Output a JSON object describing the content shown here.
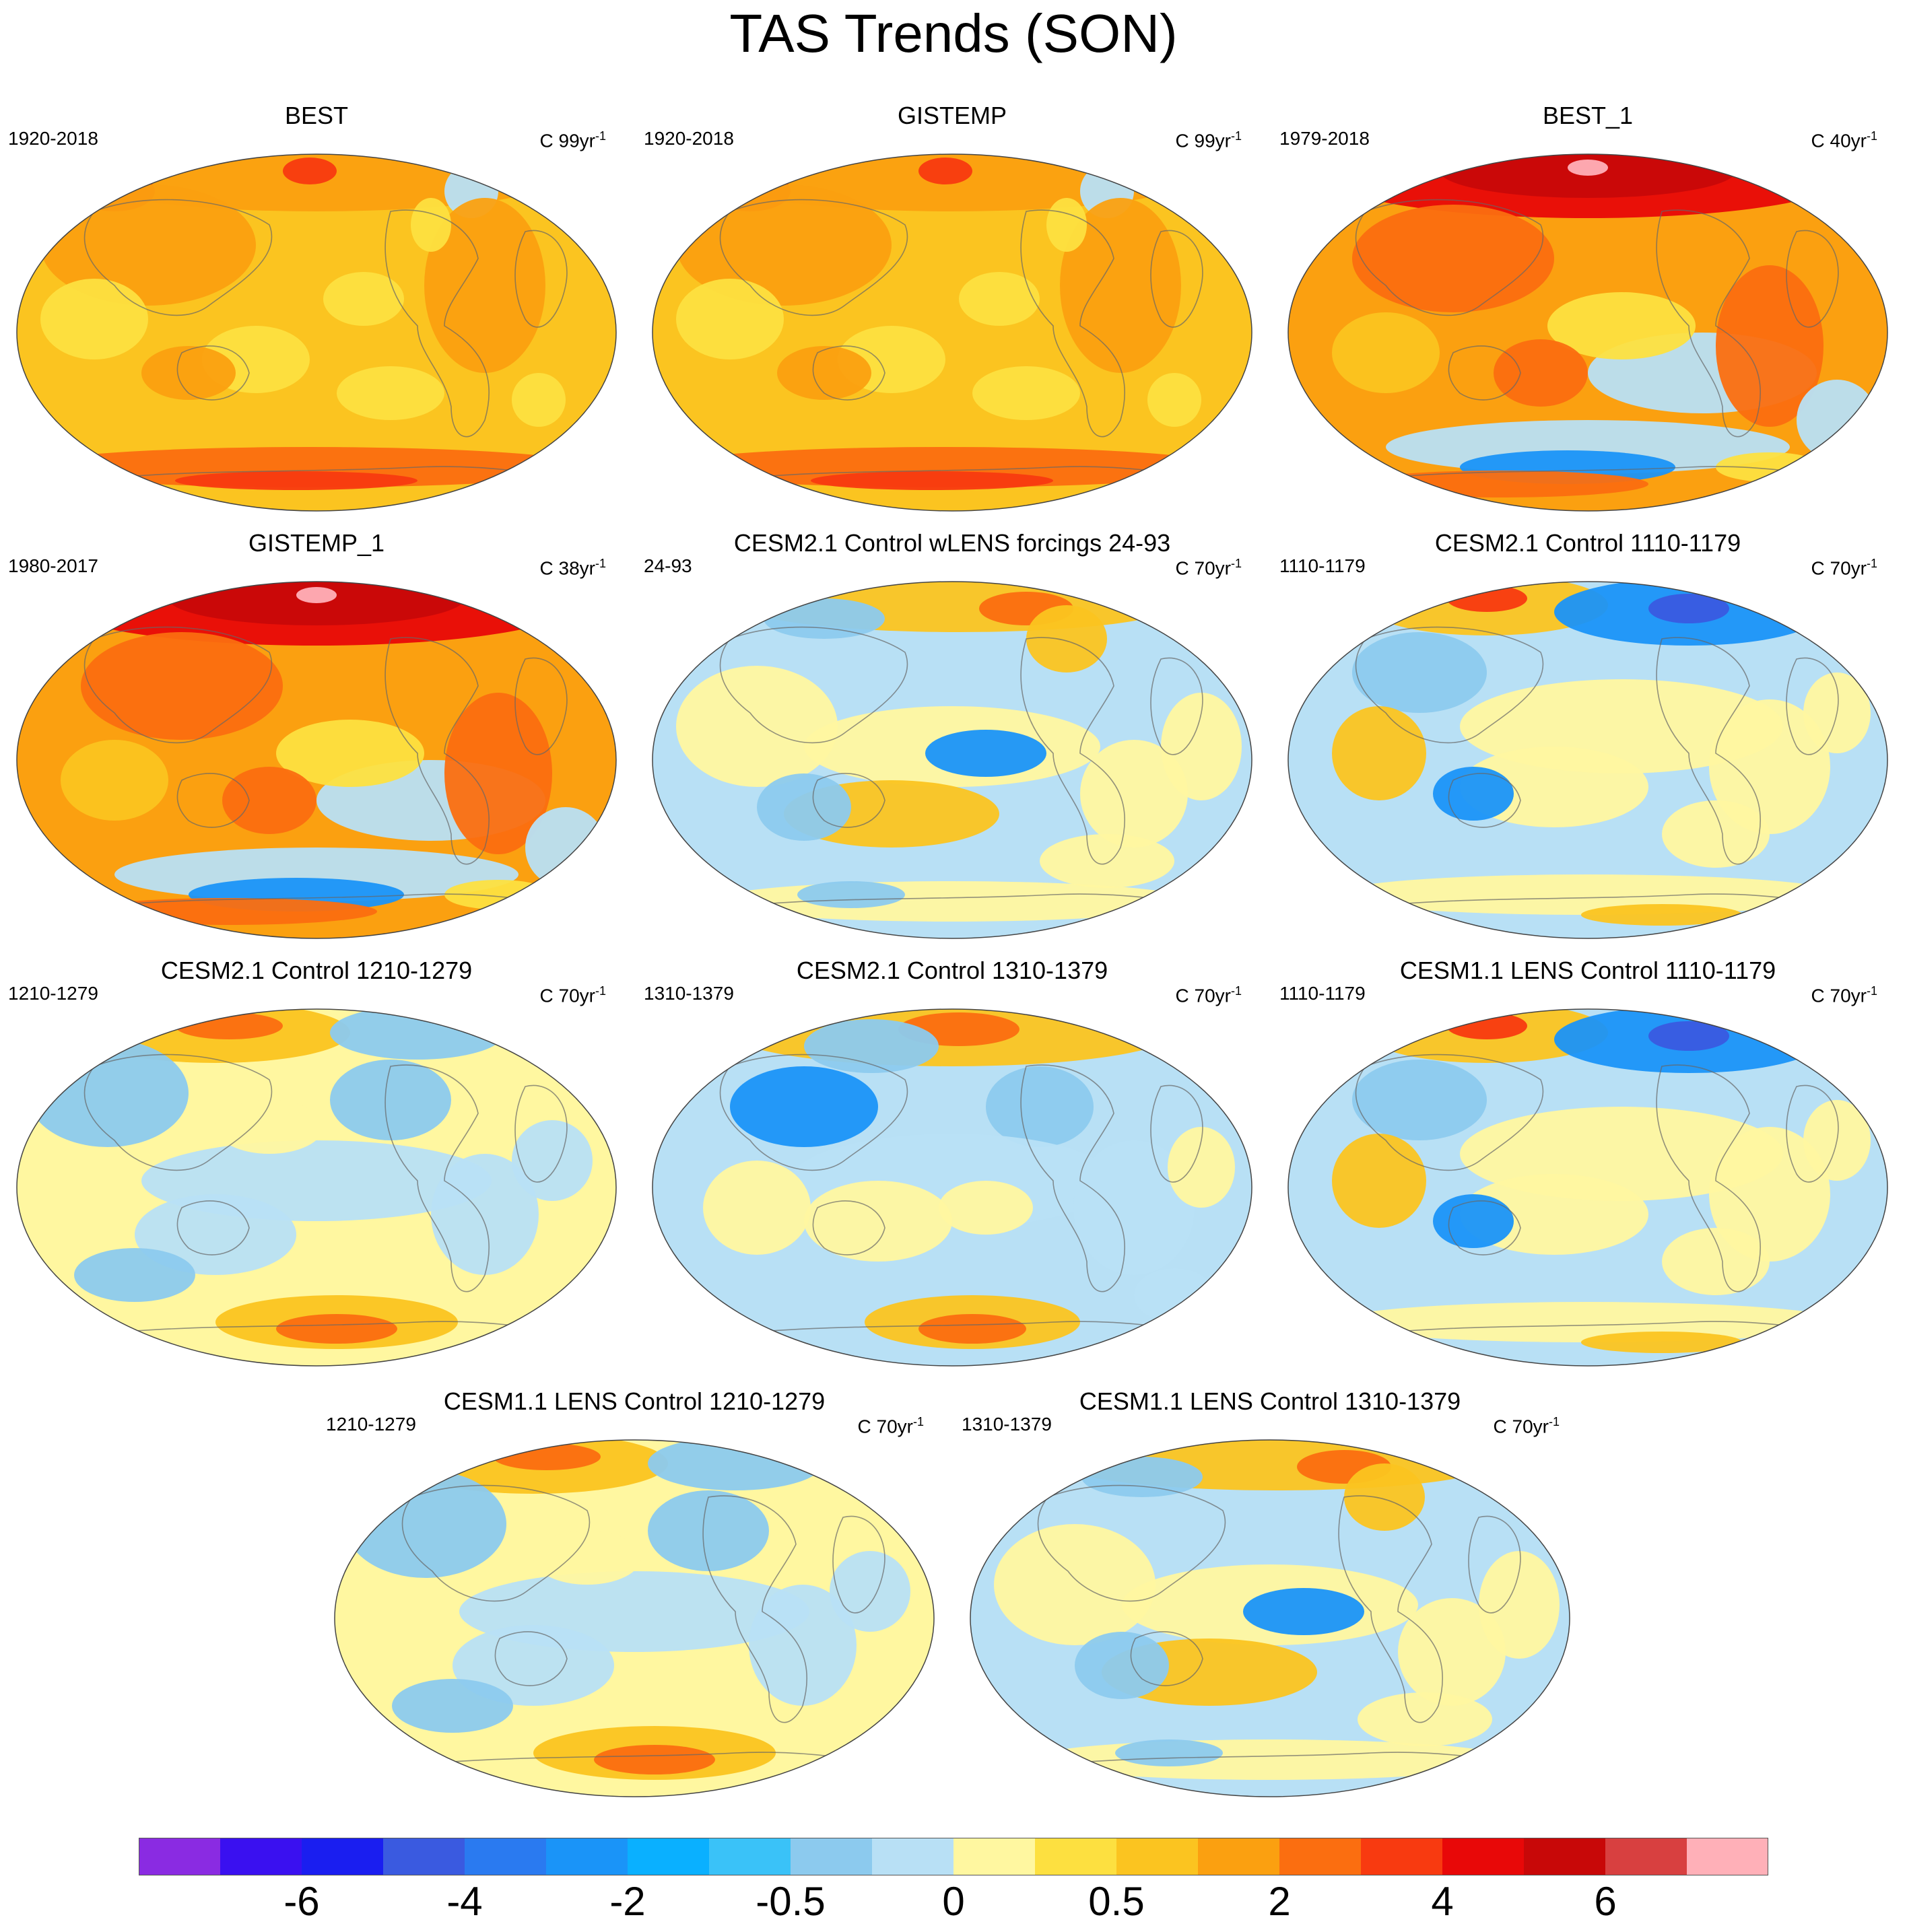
{
  "title": "TAS Trends (SON)",
  "units": {
    "base": "C",
    "exponent": "-1"
  },
  "panels": [
    {
      "title": "BEST",
      "period": "1920-2018",
      "unit": "99yr",
      "scheme": "warm1"
    },
    {
      "title": "GISTEMP",
      "period": "1920-2018",
      "unit": "99yr",
      "scheme": "warm1"
    },
    {
      "title": "BEST_1",
      "period": "1979-2018",
      "unit": "40yr",
      "scheme": "warm2"
    },
    {
      "title": "GISTEMP_1",
      "period": "1980-2017",
      "unit": "38yr",
      "scheme": "warm2"
    },
    {
      "title": "CESM2.1 Control wLENS forcings 24-93",
      "period": "24-93",
      "unit": "70yr",
      "scheme": "mixA"
    },
    {
      "title": "CESM2.1 Control 1110-1179",
      "period": "1110-1179",
      "unit": "70yr",
      "scheme": "mixB"
    },
    {
      "title": "CESM2.1 Control 1210-1279",
      "period": "1210-1279",
      "unit": "70yr",
      "scheme": "mixC"
    },
    {
      "title": "CESM2.1 Control 1310-1379",
      "period": "1310-1379",
      "unit": "70yr",
      "scheme": "mixD"
    },
    {
      "title": "CESM1.1 LENS Control 1110-1179",
      "period": "1110-1179",
      "unit": "70yr",
      "scheme": "mixB"
    },
    {
      "title": "CESM1.1 LENS Control 1210-1279",
      "period": "1210-1279",
      "unit": "70yr",
      "scheme": "mixC"
    },
    {
      "title": "CESM1.1 LENS Control 1310-1379",
      "period": "1310-1379",
      "unit": "70yr",
      "scheme": "mixA"
    }
  ],
  "colorbar": {
    "colors": [
      "#8a2be2",
      "#3a10f0",
      "#1a1ef0",
      "#3a5ae0",
      "#2a7af0",
      "#1a94f8",
      "#0ab0ff",
      "#3ac2f8",
      "#8ccaee",
      "#b8e0f5",
      "#fff7a0",
      "#fde040",
      "#fbc420",
      "#fba010",
      "#fb6e10",
      "#f83a10",
      "#e80808",
      "#c80808",
      "#d84040",
      "#ffb0b8"
    ],
    "labels": [
      {
        "text": "-6",
        "boundary": 2
      },
      {
        "text": "-4",
        "boundary": 4
      },
      {
        "text": "-2",
        "boundary": 6
      },
      {
        "text": "-0.5",
        "boundary": 8
      },
      {
        "text": "0",
        "boundary": 10
      },
      {
        "text": "0.5",
        "boundary": 12
      },
      {
        "text": "2",
        "boundary": 14
      },
      {
        "text": "4",
        "boundary": 16
      },
      {
        "text": "6",
        "boundary": 18
      }
    ]
  }
}
